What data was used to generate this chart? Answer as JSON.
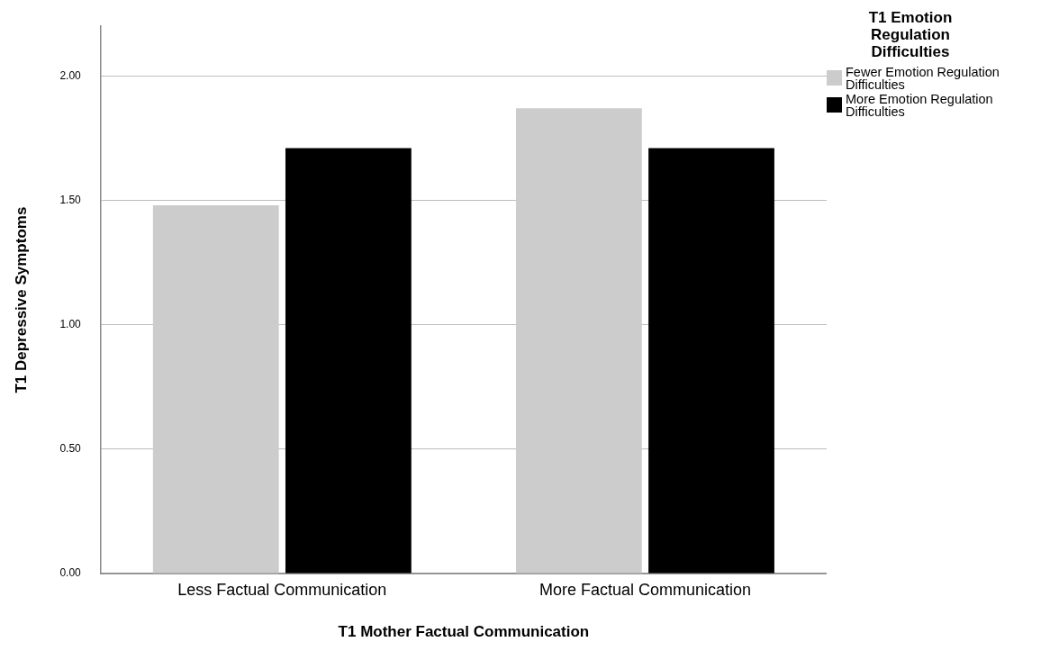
{
  "chart_data": {
    "type": "bar",
    "xlabel": "T1 Mother Factual Communication",
    "ylabel": "T1 Depressive Symptoms",
    "legend_title": "T1 Emotion Regulation Difficulties",
    "categories": [
      "Less Factual Communication",
      "More Factual Communication"
    ],
    "series": [
      {
        "name": "Fewer Emotion Regulation Difficulties",
        "color": "#cccccc",
        "values": [
          1.48,
          1.87
        ]
      },
      {
        "name": "More Emotion Regulation Difficulties",
        "color": "#000000",
        "values": [
          1.71,
          1.71
        ]
      }
    ],
    "ylim": [
      0,
      2.2
    ],
    "yticks": [
      {
        "value": 0,
        "label": "0.00"
      },
      {
        "value": 0.5,
        "label": "0.50"
      },
      {
        "value": 1,
        "label": "1.00"
      },
      {
        "value": 1.5,
        "label": "1.50"
      },
      {
        "value": 2,
        "label": "2.00"
      }
    ],
    "grid": "y",
    "legend": "top right"
  }
}
